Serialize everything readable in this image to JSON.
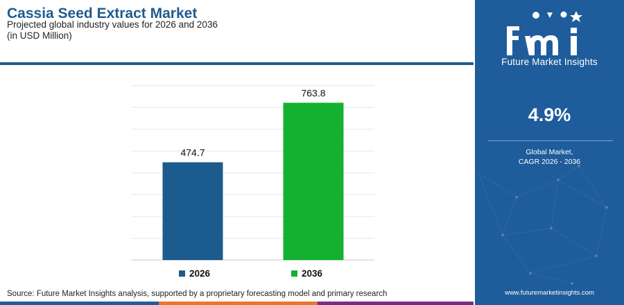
{
  "header": {
    "title": "Cassia Seed Extract Market",
    "subtitle_line1": "Projected global industry values for 2026 and 2036",
    "subtitle_line2": "(in USD Million)"
  },
  "chart_data": {
    "type": "bar",
    "title": "Cassia Seed Extract Market",
    "categories": [
      "2026",
      "2036"
    ],
    "values": [
      474.7,
      763.8
    ],
    "value_labels": [
      "474.7",
      "763.8"
    ],
    "colors": [
      "#1c5b8e",
      "#14b131"
    ],
    "xlabel": "",
    "ylabel": "",
    "unit": "USD Million",
    "ylim": [
      0,
      900
    ],
    "grid": true,
    "legend_position": "bottom"
  },
  "legend": {
    "items": [
      {
        "label": "2026",
        "color": "#1c5b8e"
      },
      {
        "label": "2036",
        "color": "#14b131"
      }
    ]
  },
  "footer": {
    "source": "Source: Future Market Insights analysis, supported by a proprietary forecasting model and primary research"
  },
  "bottom_bar_colors": [
    "#1f5c9b",
    "#e8762d",
    "#7a2d86"
  ],
  "sidebar": {
    "logo_text": "fmi",
    "brand_name": "Future Market Insights",
    "cagr_value": "4.9%",
    "cagr_label_line1": "Global Market,",
    "cagr_label_line2": "CAGR 2026 - 2036",
    "website": "www.futuremarketinsights.com",
    "background_color": "#1f5c9b"
  }
}
